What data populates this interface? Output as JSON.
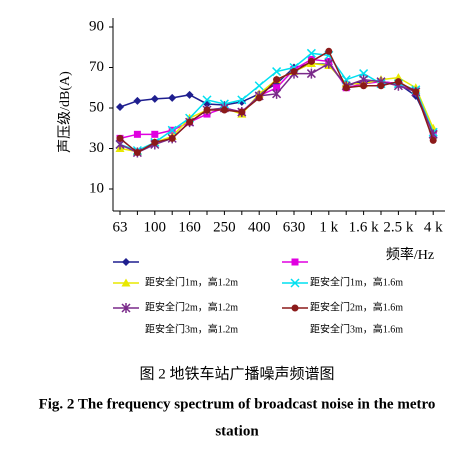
{
  "chart_data": {
    "type": "line",
    "y_label": "声压级/dB(A)",
    "x_label": "频率/Hz",
    "categories": [
      "63",
      null,
      "100",
      null,
      "160",
      null,
      "250",
      null,
      "400",
      null,
      "630",
      null,
      "1 k",
      null,
      "1.6 k",
      null,
      "2.5 k",
      null,
      "4 k"
    ],
    "ylim": [
      0,
      90
    ],
    "yticks": [
      10,
      30,
      50,
      70,
      90
    ],
    "series": [
      {
        "name": "距安全门1m，高1.2m",
        "color": "#1f1f8f",
        "marker": "diamond",
        "values": [
          50.5,
          53.5,
          54.5,
          55,
          56.5,
          52,
          51.5,
          53,
          57,
          62,
          70,
          72,
          71.5,
          61,
          63,
          63,
          62,
          56,
          38
        ]
      },
      {
        "name": "距安全门1m，高1.6m",
        "color": "#e000e0",
        "marker": "square",
        "values": [
          35,
          37,
          37,
          39,
          43,
          47,
          50,
          48,
          56,
          60,
          69,
          74,
          73,
          60,
          62,
          63,
          62,
          58,
          37
        ]
      },
      {
        "name": "距安全门2m，高1.2m",
        "color": "#e8e800",
        "marker": "triangle",
        "values": [
          30,
          28.5,
          33,
          36,
          45,
          49,
          50,
          47,
          57,
          64,
          68,
          72,
          71,
          62,
          62,
          64,
          65,
          60,
          40
        ]
      },
      {
        "name": "距安全门2m，高1.6m",
        "color": "#00e0f0",
        "marker": "x",
        "values": [
          32,
          29,
          33,
          39,
          45,
          54,
          52,
          54,
          61,
          68,
          70,
          77,
          76,
          64,
          67,
          62,
          62,
          59,
          38
        ]
      },
      {
        "name": "距安全门3m，高1.2m",
        "color": "#7a2a8a",
        "marker": "asterisk",
        "values": [
          32,
          28,
          32,
          35,
          43,
          49,
          50,
          48,
          56,
          57,
          67,
          67,
          72,
          61,
          64,
          63,
          61,
          58,
          37
        ]
      },
      {
        "name": "距安全门3m，高1.6m",
        "color": "#8b1a1a",
        "marker": "circle",
        "values": [
          35,
          28,
          33,
          35,
          43,
          49,
          49,
          48,
          55,
          64,
          68,
          73,
          78,
          60,
          61,
          61,
          63,
          58,
          34
        ]
      }
    ],
    "captions": [
      "图 2  地铁车站广播噪声频谱图",
      "Fig. 2  The frequency spectrum of broadcast noise in the metro",
      "station"
    ]
  }
}
